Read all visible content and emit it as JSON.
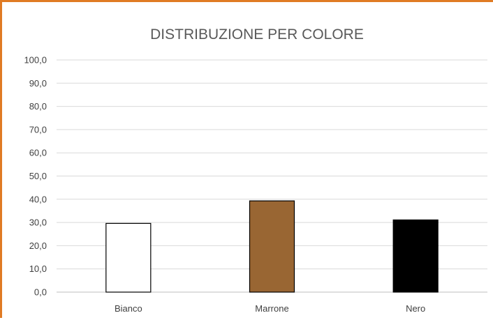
{
  "chart_data": {
    "type": "bar",
    "title": "DISTRIBUZIONE PER COLORE",
    "xlabel": "",
    "ylabel": "",
    "categories": [
      "Bianco",
      "Marrone",
      "Nero"
    ],
    "values": [
      29.6,
      39.3,
      31.1
    ],
    "bar_colors": [
      "#FFFFFF",
      "#996633",
      "#000000"
    ],
    "bar_outline": "#000000",
    "ylim": [
      0,
      100
    ],
    "yticks": [
      "0,0",
      "10,0",
      "20,0",
      "30,0",
      "40,0",
      "50,0",
      "60,0",
      "70,0",
      "80,0",
      "90,0",
      "100,0"
    ],
    "grid": true,
    "legend": "none"
  },
  "frame": {
    "border_color": "#E07B24"
  }
}
